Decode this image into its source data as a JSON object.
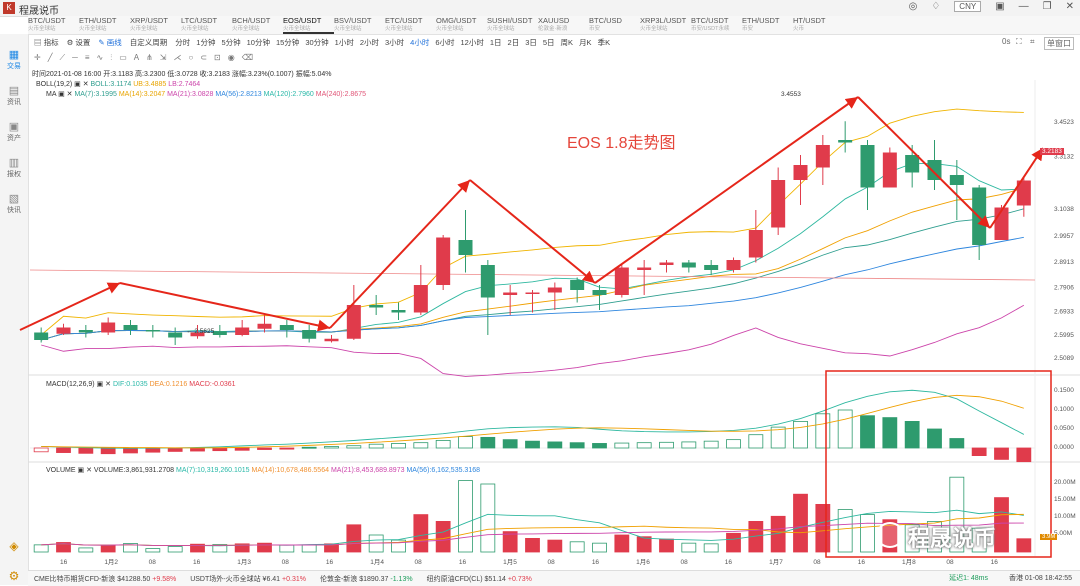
{
  "app": {
    "title": "程晟说币",
    "currency": "CNY"
  },
  "tabs": [
    {
      "label": "BTC/USDT",
      "sub": "火币全球站"
    },
    {
      "label": "ETH/USDT",
      "sub": "火币全球站"
    },
    {
      "label": "XRP/USDT",
      "sub": "火币全球站"
    },
    {
      "label": "LTC/USDT",
      "sub": "火币全球站"
    },
    {
      "label": "BCH/USDT",
      "sub": "火币全球站"
    },
    {
      "label": "EOS/USDT",
      "sub": "火币全球站"
    },
    {
      "label": "BSV/USDT",
      "sub": "火币全球站"
    },
    {
      "label": "ETC/USDT",
      "sub": "火币全球站"
    },
    {
      "label": "OMG/USDT",
      "sub": "火币全球站"
    },
    {
      "label": "SUSHI/USDT",
      "sub": "火币全球站"
    },
    {
      "label": "XAUUSD",
      "sub": "伦敦金·新浪"
    },
    {
      "label": "BTC/USD",
      "sub": "币安"
    },
    {
      "label": "XRP3L/USDT",
      "sub": "火币全球站"
    },
    {
      "label": "BTC/USDT",
      "sub": "币安/USDT永续"
    },
    {
      "label": "ETH/USDT",
      "sub": "币安"
    },
    {
      "label": "HT/USDT",
      "sub": "火币"
    }
  ],
  "active_tab": 5,
  "sidebar": [
    {
      "label": "交易",
      "icon": "grid-icon"
    },
    {
      "label": "资讯",
      "icon": "news-icon"
    },
    {
      "label": "资产",
      "icon": "wallet-icon"
    },
    {
      "label": "报权",
      "icon": "report-icon"
    },
    {
      "label": "快讯",
      "icon": "flash-icon"
    }
  ],
  "toolbar": {
    "indicator": "指标",
    "settings": "设置",
    "drawing": "画线",
    "custom": "自定义周期",
    "periods": [
      "分时",
      "1分钟",
      "5分钟",
      "10分钟",
      "15分钟",
      "30分钟",
      "1小时",
      "2小时",
      "3小时",
      "4小时",
      "6小时",
      "12小时",
      "1日",
      "2日",
      "3日",
      "5日",
      "周K",
      "月K",
      "季K"
    ],
    "selected_period": "4小时",
    "right_label": "0s",
    "layout": "单窗口"
  },
  "info": "时间2021-01-08 16:00  开:3.1183  高:3.2300  低:3.0728  收:3.2183  涨幅:3.23%(0.1007)  振幅:5.04%",
  "ind_boll": {
    "name": "BOLL(19,2)",
    "boll": "BOLL:3.1174",
    "ub": "UB:3.4885",
    "lb": "LB:2.7464"
  },
  "ind_ma": {
    "name": "MA",
    "ma7": "MA(7):3.1995",
    "ma14": "MA(14):3.2047",
    "ma21": "MA(21):3.0828",
    "ma56": "MA(56):2.8213",
    "ma120": "MA(120):2.7960",
    "ma240": "MA(240):2.8675"
  },
  "ind_macd": {
    "name": "MACD(12,26,9)",
    "dif": "DIF:0.1035",
    "dea": "DEA:0.1216",
    "macd": "MACD:-0.0361"
  },
  "ind_vol": {
    "name": "VOLUME",
    "vol": "VOLUME:3,861,931.2708",
    "ma7": "MA(7):10,319,260.1015",
    "ma14": "MA(14):10,678,486.5564",
    "ma21": "MA(21):8,453,689.8973",
    "ma56": "MA(56):6,162,535.3168"
  },
  "annotation": "EOS 1.8走势图",
  "watermark": "程晟说币",
  "price_high_label": "3.4553",
  "price_low_label": "2.5625",
  "current_price_label": "3.2183",
  "volume_tag": "3.9M",
  "status": {
    "items": [
      {
        "name": "CME比特币期货CFD-新浪",
        "value": "$41288.50",
        "chg": "+9.58%",
        "up": true
      },
      {
        "name": "USDT场外-火币全球站",
        "value": "¥6.41",
        "chg": "+0.31%",
        "up": true
      },
      {
        "name": "伦敦金-新浪",
        "value": "$1890.37",
        "chg": "-1.13%",
        "up": false
      },
      {
        "name": "纽约原油CFD(CL)",
        "value": "$51.14",
        "chg": "+0.73%",
        "up": true
      }
    ],
    "latency": "延迟1: 48ms",
    "clock": "香港 01-08 18:42:55"
  },
  "colors": {
    "up": "#e03b4b",
    "down": "#2e9b6e",
    "arrow": "#e5261a",
    "highlight": "#e5261a"
  },
  "chart_data": {
    "type": "candlestick",
    "interval": "4小时",
    "x_ticks": [
      "16",
      "1月2",
      "08",
      "16",
      "1月3",
      "08",
      "16",
      "1月4",
      "08",
      "16",
      "1月5",
      "08",
      "16",
      "1月6",
      "08",
      "16",
      "1月7",
      "08",
      "16",
      "1月8",
      "08",
      "16"
    ],
    "price_axis_ticks": [
      3.4523,
      3.3132,
      3.1038,
      2.9957,
      2.8913,
      2.7906,
      2.6933,
      2.5995,
      2.5089
    ],
    "ylim": [
      2.48,
      3.5
    ],
    "candles": [
      [
        2.61,
        2.58,
        2.63,
        2.57
      ],
      [
        2.605,
        2.63,
        2.645,
        2.6
      ],
      [
        2.62,
        2.61,
        2.64,
        2.59
      ],
      [
        2.61,
        2.65,
        2.67,
        2.6
      ],
      [
        2.64,
        2.62,
        2.66,
        2.6
      ],
      [
        2.62,
        2.615,
        2.64,
        2.59
      ],
      [
        2.61,
        2.59,
        2.63,
        2.56
      ],
      [
        2.595,
        2.61,
        2.64,
        2.585
      ],
      [
        2.615,
        2.6,
        2.64,
        2.59
      ],
      [
        2.6,
        2.63,
        2.66,
        2.595
      ],
      [
        2.625,
        2.645,
        2.68,
        2.61
      ],
      [
        2.64,
        2.62,
        2.66,
        2.59
      ],
      [
        2.62,
        2.585,
        2.64,
        2.57
      ],
      [
        2.575,
        2.585,
        2.6,
        2.57
      ],
      [
        2.585,
        2.72,
        2.8,
        2.58
      ],
      [
        2.72,
        2.71,
        2.76,
        2.68
      ],
      [
        2.7,
        2.69,
        2.73,
        2.66
      ],
      [
        2.69,
        2.8,
        2.88,
        2.68
      ],
      [
        2.8,
        2.99,
        3.0,
        2.78
      ],
      [
        2.98,
        2.92,
        3.1,
        2.85
      ],
      [
        2.88,
        2.75,
        2.9,
        2.6
      ],
      [
        2.76,
        2.77,
        2.8,
        2.68
      ],
      [
        2.77,
        2.77,
        2.78,
        2.69
      ],
      [
        2.77,
        2.79,
        2.81,
        2.7
      ],
      [
        2.82,
        2.78,
        2.83,
        2.73
      ],
      [
        2.78,
        2.76,
        2.8,
        2.7
      ],
      [
        2.76,
        2.87,
        2.88,
        2.75
      ],
      [
        2.86,
        2.87,
        2.9,
        2.76
      ],
      [
        2.88,
        2.89,
        2.9,
        2.85
      ],
      [
        2.89,
        2.87,
        2.9,
        2.85
      ],
      [
        2.88,
        2.86,
        2.9,
        2.84
      ],
      [
        2.86,
        2.9,
        2.91,
        2.85
      ],
      [
        2.91,
        3.02,
        3.1,
        2.89
      ],
      [
        3.03,
        3.22,
        3.27,
        3.0
      ],
      [
        3.22,
        3.28,
        3.32,
        3.12
      ],
      [
        3.27,
        3.36,
        3.4,
        3.2
      ],
      [
        3.38,
        3.37,
        3.455,
        3.33
      ],
      [
        3.36,
        3.19,
        3.38,
        3.1
      ],
      [
        3.19,
        3.33,
        3.35,
        3.2
      ],
      [
        3.32,
        3.25,
        3.36,
        3.19
      ],
      [
        3.3,
        3.22,
        3.38,
        3.18
      ],
      [
        3.24,
        3.2,
        3.3,
        3.06
      ],
      [
        3.19,
        2.96,
        3.2,
        2.9
      ],
      [
        2.98,
        3.11,
        3.12,
        2.99
      ],
      [
        3.118,
        3.218,
        3.23,
        3.073
      ]
    ],
    "macd_hist": [
      -0.01,
      -0.012,
      -0.014,
      -0.015,
      -0.013,
      -0.011,
      -0.009,
      -0.008,
      -0.007,
      -0.006,
      -0.004,
      -0.003,
      0.002,
      0.004,
      0.006,
      0.01,
      0.012,
      0.014,
      0.02,
      0.03,
      0.028,
      0.022,
      0.018,
      0.016,
      0.014,
      0.012,
      0.013,
      0.014,
      0.015,
      0.016,
      0.018,
      0.022,
      0.035,
      0.055,
      0.07,
      0.09,
      0.1,
      0.085,
      0.08,
      0.07,
      0.05,
      0.025,
      -0.02,
      -0.03,
      -0.036
    ],
    "volume": [
      2.1,
      2.8,
      1.2,
      2.0,
      2.5,
      1.0,
      1.6,
      2.3,
      2.2,
      2.4,
      2.6,
      2.0,
      2.1,
      2.4,
      8.0,
      5.0,
      3.5,
      11.0,
      9.0,
      21.0,
      20.0,
      6.0,
      4.0,
      3.5,
      3.0,
      2.6,
      5.0,
      4.5,
      3.8,
      2.6,
      2.4,
      5.5,
      9.0,
      10.5,
      17.0,
      14.0,
      12.5,
      11.0,
      9.5,
      8.0,
      9.0,
      22.0,
      7.0,
      16.0,
      3.9
    ],
    "vol_axis_ticks": [
      "20.00M",
      "15.00M",
      "10.00M",
      "5.00M"
    ],
    "macd_axis_ticks": [
      "0.1500",
      "0.1000",
      "0.0500",
      "0.0000"
    ]
  }
}
